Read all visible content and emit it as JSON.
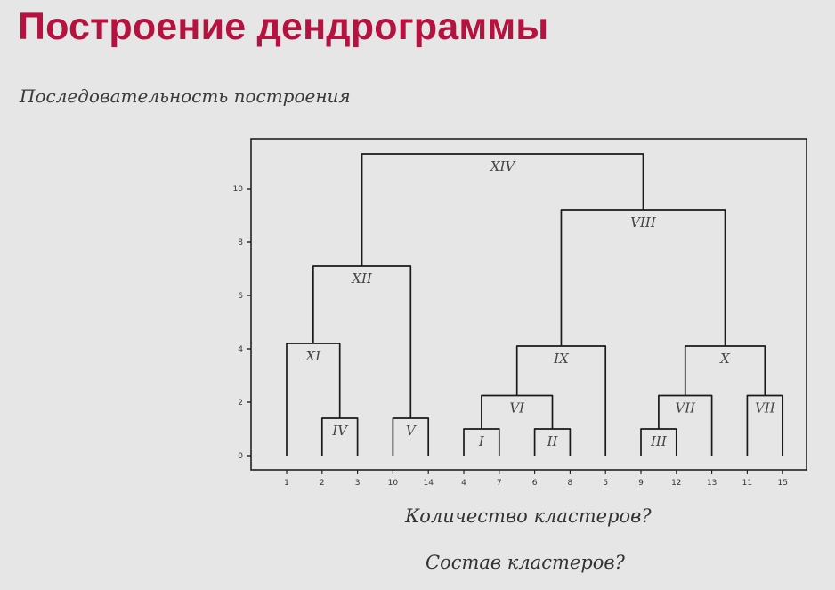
{
  "slide": {
    "title": "Построение дендрограммы",
    "subtitle": "Последовательность построения",
    "question_count": "Количество кластеров?",
    "question_composition": "Состав кластеров?"
  },
  "colors": {
    "title": "#b5123f",
    "lines": "#1a1a1a",
    "background": "#e6e6e6"
  },
  "chart_data": {
    "type": "dendrogram",
    "leaves": [
      "1",
      "2",
      "3",
      "10",
      "14",
      "4",
      "7",
      "6",
      "8",
      "5",
      "9",
      "12",
      "13",
      "11",
      "15"
    ],
    "yticks": [
      0,
      2,
      4,
      6,
      8,
      10
    ],
    "ylim": [
      -0.3,
      11.8
    ],
    "grid": false,
    "merges": [
      {
        "label": "XIV",
        "height": 11.3,
        "left": "XII",
        "right": "VIII"
      },
      {
        "label": "VIII",
        "height": 9.2,
        "left": "IX",
        "right": "X"
      },
      {
        "label": "XII",
        "height": 7.1,
        "left": "XI",
        "right": "V"
      },
      {
        "label": "XI",
        "height": 4.2,
        "left": "1",
        "right": "IV"
      },
      {
        "label": "IX",
        "height": 4.1,
        "left": "VI",
        "right": "5"
      },
      {
        "label": "X",
        "height": 4.1,
        "left": "VII_a",
        "right": "VII_b"
      },
      {
        "label": "VI",
        "height": 2.25,
        "left": "I",
        "right": "II"
      },
      {
        "label": "VII",
        "id": "VII_a",
        "height": 2.25,
        "left": "III",
        "right": "13"
      },
      {
        "label": "VII",
        "id": "VII_b",
        "height": 2.25,
        "left": "11",
        "right": "15"
      },
      {
        "label": "IV",
        "height": 1.4,
        "left": "2",
        "right": "3"
      },
      {
        "label": "V",
        "height": 1.4,
        "left": "10",
        "right": "14"
      },
      {
        "label": "I",
        "height": 1.0,
        "left": "4",
        "right": "7"
      },
      {
        "label": "II",
        "height": 1.0,
        "left": "6",
        "right": "8"
      },
      {
        "label": "III",
        "height": 1.0,
        "left": "9",
        "right": "12"
      }
    ]
  }
}
